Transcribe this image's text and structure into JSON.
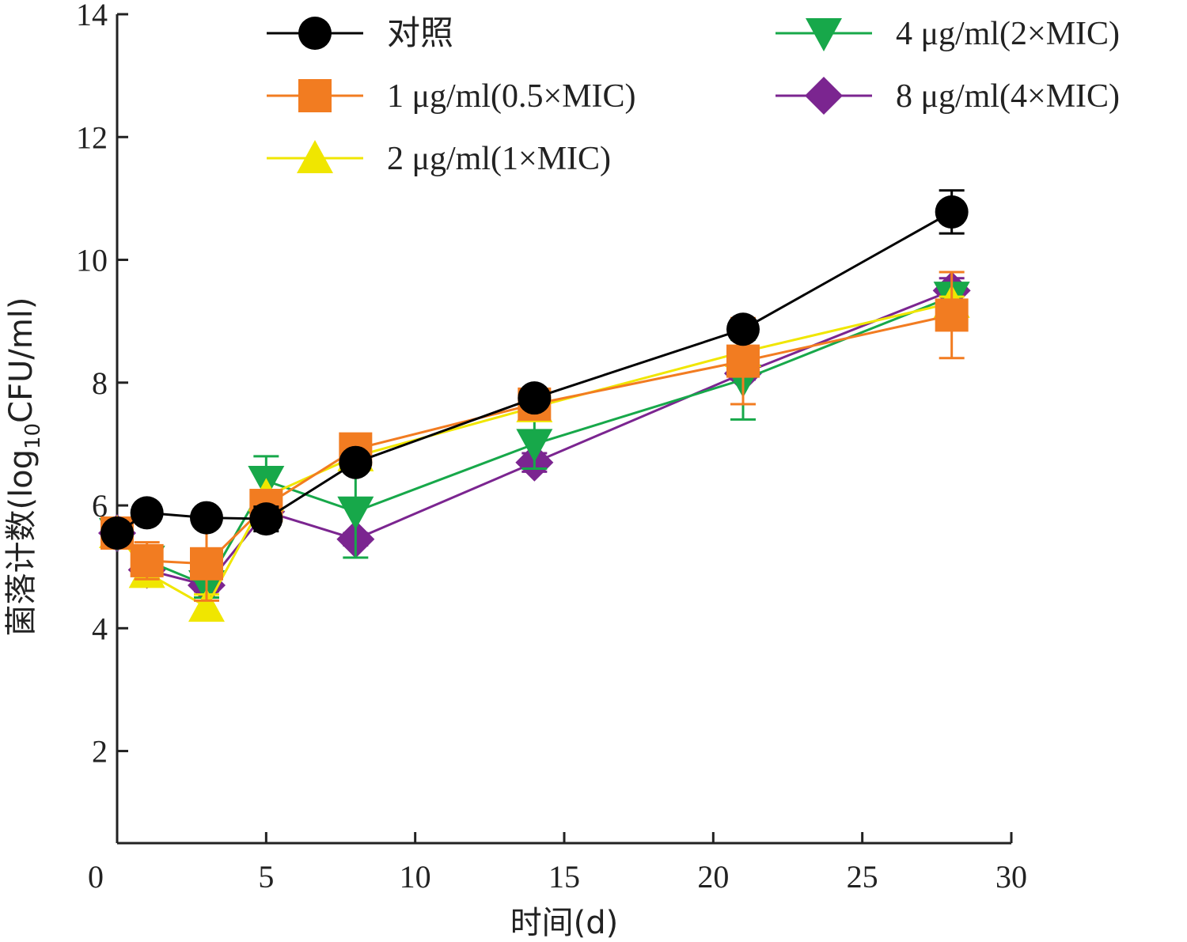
{
  "chart_data": {
    "type": "line",
    "xlabel": "时间(d)",
    "ylabel_main": "菌落计数(log",
    "ylabel_sub": "10",
    "ylabel_tail": "CFU/ml)",
    "xlim": [
      0,
      30
    ],
    "ylim": [
      0.5,
      14
    ],
    "xticks": [
      0,
      5,
      10,
      15,
      20,
      25,
      30
    ],
    "yticks": [
      2,
      4,
      6,
      8,
      10,
      12,
      14
    ],
    "legend_position": "top",
    "x": [
      0,
      1,
      3,
      5,
      8,
      14,
      21,
      28
    ],
    "series": [
      {
        "name": "对照",
        "marker": "circle",
        "color": "#000000",
        "values": [
          5.55,
          5.88,
          5.8,
          5.78,
          6.7,
          7.75,
          8.87,
          10.78
        ],
        "errors": [
          0.08,
          0.08,
          0.08,
          0.2,
          0.08,
          0.08,
          0.1,
          0.35
        ]
      },
      {
        "name": "1 μg/ml(0.5×MIC)",
        "marker": "square",
        "color": "#f27c21",
        "values": [
          5.55,
          5.1,
          5.05,
          6.0,
          6.92,
          7.65,
          8.35,
          9.1
        ],
        "errors": [
          0.1,
          0.3,
          0.6,
          0.1,
          0.1,
          0.1,
          0.7,
          0.7
        ]
      },
      {
        "name": "2 μg/ml(1×MIC)",
        "marker": "triangle-up",
        "color": "#f0e600",
        "values": [
          5.55,
          4.9,
          4.35,
          6.15,
          6.8,
          7.6,
          8.5,
          9.3
        ],
        "errors": [
          0.1,
          0.1,
          0.2,
          0.1,
          0.15,
          0.1,
          0.1,
          0.1
        ]
      },
      {
        "name": "4 μg/ml(2×MIC)",
        "marker": "triangle-down",
        "color": "#17a84a",
        "values": [
          5.55,
          5.1,
          4.7,
          6.4,
          5.9,
          7.0,
          8.05,
          9.4
        ],
        "errors": [
          0.1,
          0.2,
          0.2,
          0.4,
          0.75,
          0.4,
          0.65,
          0.2
        ]
      },
      {
        "name": "8 μg/ml(4×MIC)",
        "marker": "diamond",
        "color": "#7b2590",
        "values": [
          5.55,
          4.95,
          4.7,
          5.9,
          5.45,
          6.7,
          8.15,
          9.5
        ],
        "errors": [
          0.08,
          0.1,
          0.1,
          0.08,
          0.1,
          0.15,
          0.1,
          0.2
        ]
      }
    ]
  }
}
